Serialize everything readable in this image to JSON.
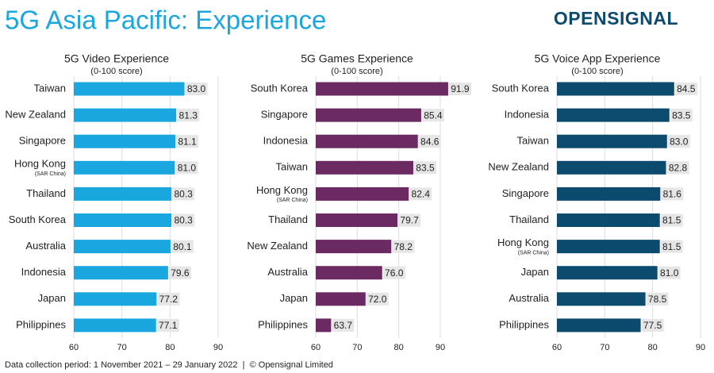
{
  "title": "5G Asia Pacific: Experience",
  "logo": "OPENSIGNAL",
  "footer": "Data collection period: 1 November 2021 – 29 January 2022  |  © Opensignal Limited",
  "chart_data": [
    {
      "type": "bar",
      "orientation": "horizontal",
      "title": "5G Video Experience",
      "subtitle": "(0-100 score)",
      "categories": [
        "Taiwan",
        "New Zealand",
        "Singapore",
        "Hong Kong",
        "Thailand",
        "South Korea",
        "Australia",
        "Indonesia",
        "Japan",
        "Philippines"
      ],
      "category_notes": [
        null,
        null,
        null,
        "(SAR China)",
        null,
        null,
        null,
        null,
        null,
        null
      ],
      "values": [
        83.0,
        81.3,
        81.1,
        81.0,
        80.3,
        80.3,
        80.1,
        79.6,
        77.2,
        77.1
      ],
      "value_labels": [
        "83.0",
        "81.3",
        "81.1",
        "81.0",
        "80.3",
        "80.3",
        "80.1",
        "79.6",
        "77.2",
        "77.1"
      ],
      "color": "#1aa7e0",
      "xlim": [
        60,
        90
      ],
      "xticks": [
        60,
        70,
        80,
        90
      ],
      "grid": true
    },
    {
      "type": "bar",
      "orientation": "horizontal",
      "title": "5G Games Experience",
      "subtitle": "(0-100 score)",
      "categories": [
        "South Korea",
        "Singapore",
        "Indonesia",
        "Taiwan",
        "Hong Kong",
        "Thailand",
        "New Zealand",
        "Australia",
        "Japan",
        "Philippines"
      ],
      "category_notes": [
        null,
        null,
        null,
        null,
        "(SAR China)",
        null,
        null,
        null,
        null,
        null
      ],
      "values": [
        91.9,
        85.4,
        84.6,
        83.5,
        82.4,
        79.7,
        78.2,
        76.0,
        72.0,
        63.7
      ],
      "value_labels": [
        "91.9",
        "85.4",
        "84.6",
        "83.5",
        "82.4",
        "79.7",
        "78.2",
        "76.0",
        "72.0",
        "63.7"
      ],
      "color": "#6b2a62",
      "xlim": [
        60,
        90
      ],
      "xticks": [
        60,
        70,
        80,
        90
      ],
      "grid": true
    },
    {
      "type": "bar",
      "orientation": "horizontal",
      "title": "5G Voice App Experience",
      "subtitle": "(0-100 score)",
      "categories": [
        "South Korea",
        "Indonesia",
        "Taiwan",
        "New Zealand",
        "Singapore",
        "Thailand",
        "Hong Kong",
        "Japan",
        "Australia",
        "Philippines"
      ],
      "category_notes": [
        null,
        null,
        null,
        null,
        null,
        null,
        "(SAR China)",
        null,
        null,
        null
      ],
      "values": [
        84.5,
        83.5,
        83.0,
        82.8,
        81.6,
        81.5,
        81.5,
        81.0,
        78.5,
        77.5
      ],
      "value_labels": [
        "84.5",
        "83.5",
        "83.0",
        "82.8",
        "81.6",
        "81.5",
        "81.5",
        "81.0",
        "78.5",
        "77.5"
      ],
      "color": "#0d4b6e",
      "xlim": [
        60,
        90
      ],
      "xticks": [
        60,
        70,
        80,
        90
      ],
      "grid": true
    }
  ]
}
